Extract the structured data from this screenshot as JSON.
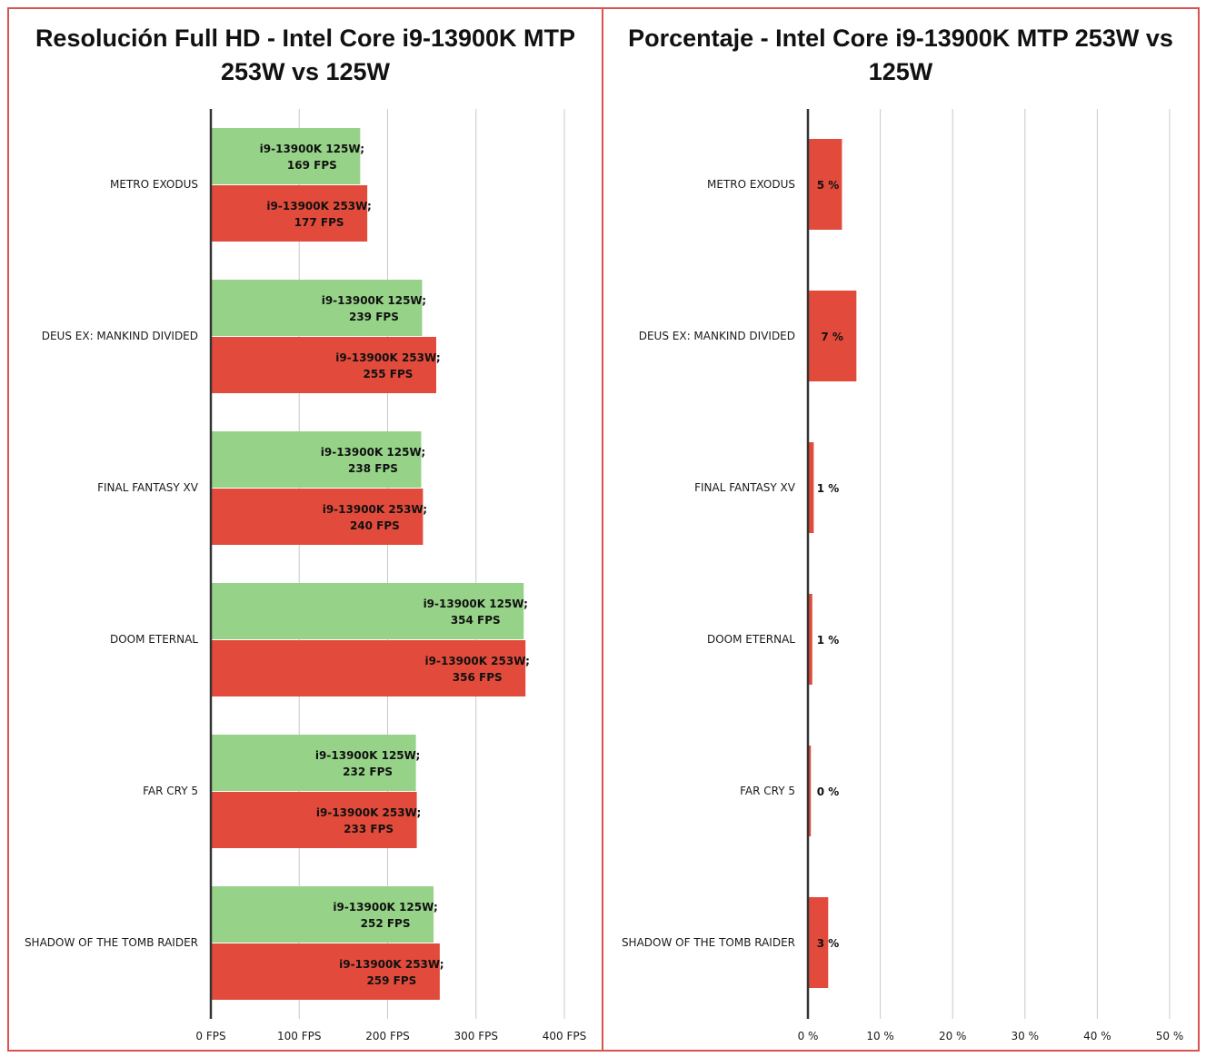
{
  "colors": {
    "c125": "#96d388",
    "c253": "#e24b3b",
    "grid": "#c8c8c8",
    "axis": "#333333",
    "border": "#d9534f"
  },
  "chart_data": [
    {
      "type": "bar",
      "orientation": "horizontal",
      "title": "Resolución Full HD - Intel Core i9-13900K MTP 253W vs 125W",
      "categories": [
        "METRO EXODUS",
        "DEUS EX: MANKIND DIVIDED",
        "FINAL FANTASY XV",
        "DOOM ETERNAL",
        "FAR CRY 5",
        "SHADOW OF THE TOMB RAIDER"
      ],
      "series": [
        {
          "name": "i9-13900K 125W",
          "values": [
            169,
            239,
            238,
            354,
            232,
            252
          ],
          "labels": [
            "169 FPS",
            "239 FPS",
            "238 FPS",
            "354 FPS",
            "232 FPS",
            "252 FPS"
          ]
        },
        {
          "name": "i9-13900K 253W",
          "values": [
            177,
            255,
            240,
            356,
            233,
            259
          ],
          "labels": [
            "177 FPS",
            "255 FPS",
            "240 FPS",
            "356 FPS",
            "233 FPS",
            "259 FPS"
          ]
        }
      ],
      "xlim": [
        0,
        400
      ],
      "xticks": [
        0,
        100,
        200,
        300,
        400
      ],
      "xtick_labels": [
        "0 FPS",
        "100 FPS",
        "200 FPS",
        "300 FPS",
        "400 FPS"
      ],
      "grid": true
    },
    {
      "type": "bar",
      "orientation": "horizontal",
      "title": "Porcentaje - Intel Core i9-13900K MTP 253W vs 125W",
      "categories": [
        "METRO EXODUS",
        "DEUS EX: MANKIND DIVIDED",
        "FINAL FANTASY XV",
        "DOOM ETERNAL",
        "FAR CRY 5",
        "SHADOW OF THE TOMB RAIDER"
      ],
      "series": [
        {
          "values": [
            4.7,
            6.7,
            0.8,
            0.6,
            0.4,
            2.8
          ],
          "labels": [
            "5 %",
            "7 %",
            "1 %",
            "1 %",
            "0 %",
            "3 %"
          ]
        }
      ],
      "xlim": [
        0,
        50
      ],
      "xticks": [
        0,
        10,
        20,
        30,
        40,
        50
      ],
      "xtick_labels": [
        "0 %",
        "10 %",
        "20 %",
        "30 %",
        "40 %",
        "50 %"
      ],
      "grid": true
    }
  ]
}
